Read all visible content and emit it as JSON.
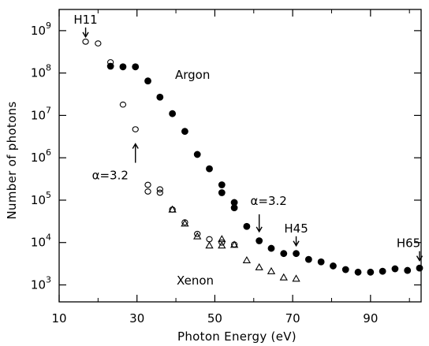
{
  "chart_data": {
    "type": "scatter",
    "title": "",
    "xlabel": "Photon Energy (eV)",
    "ylabel": "Number of photons",
    "xlim": [
      10,
      103
    ],
    "ylim_log10": [
      2.6,
      9.5
    ],
    "y_scale": "log",
    "grid": false,
    "x_ticks": [
      {
        "value": 10,
        "label": "10"
      },
      {
        "value": 30,
        "label": "30"
      },
      {
        "value": 50,
        "label": "50"
      },
      {
        "value": 70,
        "label": "70"
      },
      {
        "value": 90,
        "label": "90"
      }
    ],
    "y_ticks": [
      {
        "exp": 3,
        "label": "10",
        "sup": "3"
      },
      {
        "exp": 4,
        "label": "10",
        "sup": "4"
      },
      {
        "exp": 5,
        "label": "10",
        "sup": "5"
      },
      {
        "exp": 6,
        "label": "10",
        "sup": "6"
      },
      {
        "exp": 7,
        "label": "10",
        "sup": "7"
      },
      {
        "exp": 8,
        "label": "10",
        "sup": "8"
      },
      {
        "exp": 9,
        "label": "10",
        "sup": "9"
      }
    ],
    "series": [
      {
        "name": "Argon",
        "marker": "filled-circle",
        "points": [
          [
            23.2,
            145000000.0
          ],
          [
            26.4,
            140000000.0
          ],
          [
            29.6,
            140000000.0
          ],
          [
            32.8,
            65000000.0
          ],
          [
            35.9,
            27000000.0
          ],
          [
            39.1,
            11000000.0
          ],
          [
            42.3,
            4200000.0
          ],
          [
            45.5,
            1200000.0
          ],
          [
            48.6,
            550000.0
          ],
          [
            51.8,
            230000.0
          ],
          [
            51.8,
            150000.0
          ],
          [
            55.0,
            88000.0
          ],
          [
            55.0,
            66000.0
          ],
          [
            58.2,
            24000.0
          ],
          [
            61.4,
            11000.0
          ],
          [
            64.5,
            7300.0
          ],
          [
            67.7,
            5500.0
          ],
          [
            70.9,
            5500.0
          ],
          [
            74.1,
            4000.0
          ],
          [
            77.3,
            3500.0
          ],
          [
            80.4,
            2800.0
          ],
          [
            83.6,
            2300.0
          ],
          [
            86.8,
            2000.0
          ],
          [
            90.0,
            2000.0
          ],
          [
            93.1,
            2100.0
          ],
          [
            96.3,
            2400.0
          ],
          [
            99.5,
            2200.0
          ],
          [
            102.6,
            2500.0
          ]
        ]
      },
      {
        "name": "",
        "marker": "open-circle",
        "points": [
          [
            16.8,
            550000000.0
          ],
          [
            20.0,
            500000000.0
          ],
          [
            23.2,
            180000000.0
          ],
          [
            26.4,
            18000000.0
          ],
          [
            29.6,
            4700000.0
          ],
          [
            32.8,
            230000.0
          ],
          [
            32.8,
            160000.0
          ],
          [
            35.9,
            180000.0
          ],
          [
            35.9,
            150000.0
          ],
          [
            39.1,
            60000.0
          ],
          [
            42.3,
            30000.0
          ],
          [
            45.5,
            16000.0
          ],
          [
            48.6,
            12000.0
          ],
          [
            51.8,
            10000.0
          ],
          [
            55.0,
            9000.0
          ]
        ]
      },
      {
        "name": "Xenon",
        "marker": "open-triangle",
        "points": [
          [
            39.1,
            60000.0
          ],
          [
            42.3,
            28000.0
          ],
          [
            45.5,
            14000.0
          ],
          [
            48.6,
            8500.0
          ],
          [
            51.8,
            12000.0
          ],
          [
            51.8,
            8500.0
          ],
          [
            55.0,
            8800.0
          ],
          [
            58.2,
            3800.0
          ],
          [
            61.4,
            2600.0
          ],
          [
            64.5,
            2100.0
          ],
          [
            67.7,
            1500.0
          ],
          [
            70.9,
            1400.0
          ]
        ]
      }
    ],
    "annotations": [
      {
        "text": "H11",
        "x": 16.8,
        "arrow": "down",
        "y": 550000000.0
      },
      {
        "text": "α=3.2",
        "x": 29.6,
        "arrow": "up",
        "y": 3000000.0
      },
      {
        "text": "α=3.2",
        "x": 61.4,
        "arrow": "down",
        "y": 14000.0
      },
      {
        "text": "H45",
        "x": 70.9,
        "arrow": "down",
        "y": 6500.0
      },
      {
        "text": "H65",
        "x": 102.6,
        "arrow": "down",
        "y": 2900.0
      }
    ]
  }
}
